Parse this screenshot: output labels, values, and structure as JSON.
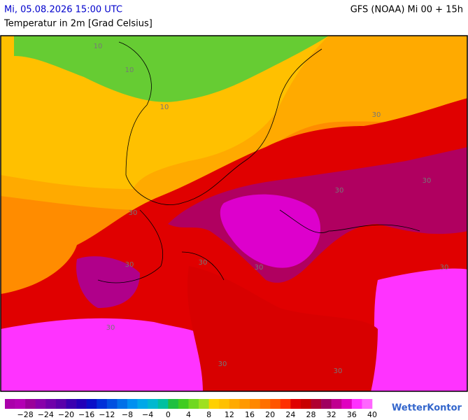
{
  "header": {
    "left_title": "Mi, 05.08.2026 15:00 UTC",
    "right_title": "GFS (NOAA) Mi 00 + 15h",
    "subtitle": "Temperatur in 2m [Grad Celsius]"
  },
  "map": {
    "contour_labels": [
      "10",
      "10",
      "10",
      "30",
      "30",
      "30",
      "30",
      "30",
      "30",
      "30",
      "30",
      "30",
      "30",
      "30"
    ]
  },
  "legend": {
    "colors": [
      "#aa00aa",
      "#b300b3",
      "#9a009a",
      "#8800aa",
      "#7000aa",
      "#5a00aa",
      "#3a00b0",
      "#2200b8",
      "#0a10c8",
      "#0030d8",
      "#0050e0",
      "#0070e8",
      "#0090f0",
      "#00a8e8",
      "#00b8d0",
      "#00c0a0",
      "#20c040",
      "#40cc20",
      "#70d820",
      "#a0e020",
      "#ffd000",
      "#ffc000",
      "#ffaa00",
      "#ff9900",
      "#ff8800",
      "#ff7000",
      "#ff5500",
      "#ff3000",
      "#e00000",
      "#c80000",
      "#b00030",
      "#a00060",
      "#c00090",
      "#e000c0",
      "#ff30ff",
      "#ff66ff"
    ],
    "ticks": [
      "−28",
      "−24",
      "−20",
      "−16",
      "−12",
      "−8",
      "−4",
      "0",
      "4",
      "8",
      "12",
      "16",
      "20",
      "24",
      "28",
      "32",
      "36",
      "40"
    ],
    "brand": "WetterKontor"
  }
}
